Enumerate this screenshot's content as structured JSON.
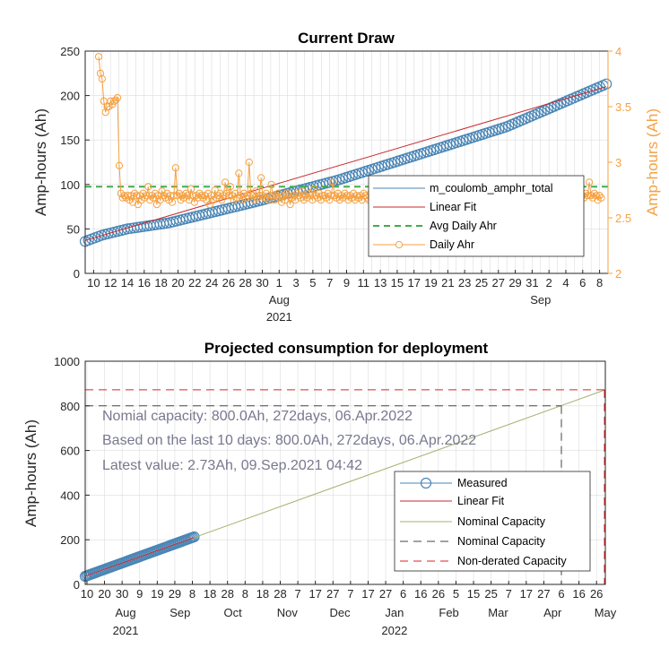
{
  "colors": {
    "measured": "#4a86b6",
    "linear_fit": "#c8282e",
    "avg_daily": "#3fae49",
    "daily": "#f5a142",
    "nominal_line": "#a4b06a",
    "nominal_dash": "#444444",
    "nonderated": "#e02020",
    "grid": "#dcdcdc",
    "annotation": "#787890"
  },
  "chart_data": [
    {
      "type": "line",
      "title": "Current Draw",
      "ylabel": "Amp-hours (Ah)",
      "ylabel_right": "Amp-hours (Ah)",
      "ylim": [
        0,
        250
      ],
      "yticks": [
        0,
        50,
        100,
        150,
        200,
        250
      ],
      "ylim_right": [
        2,
        4
      ],
      "yticks_right": [
        "2",
        "2.5",
        "3",
        "3.5",
        "4"
      ],
      "x_range": [
        "2021-07-09",
        "2021-09-09"
      ],
      "xtick_labels": [
        "10",
        "12",
        "14",
        "16",
        "18",
        "20",
        "22",
        "24",
        "26",
        "28",
        "30",
        "1",
        "3",
        "5",
        "7",
        "9",
        "11",
        "13",
        "15",
        "17",
        "19",
        "21",
        "23",
        "25",
        "27",
        "29",
        "31",
        "2",
        "4",
        "6",
        "8"
      ],
      "xtick_secondary": [
        {
          "label": "Aug",
          "year": "2021"
        },
        {
          "label": "Sep",
          "year": ""
        }
      ],
      "grid": true,
      "legend_position": "bottom-right",
      "legend": [
        "m_coulomb_amphr_total",
        "Linear Fit",
        "Avg Daily Ahr",
        "Daily Ahr"
      ],
      "series": [
        {
          "name": "m_coulomb_amphr_total",
          "style": "circles",
          "x_start": "2021-07-09",
          "x_end": "2021-09-09",
          "points": [
            [
              0,
              36
            ],
            [
              2,
              43
            ],
            [
              5,
              50
            ],
            [
              10,
              57
            ],
            [
              20,
              80
            ],
            [
              30,
              105
            ],
            [
              40,
              135
            ],
            [
              50,
              165
            ],
            [
              61.8,
              213
            ]
          ]
        },
        {
          "name": "Linear Fit",
          "style": "line",
          "x_start": "2021-07-09",
          "x_end": "2021-09-09",
          "values": [
            [
              0,
              37
            ],
            [
              61.8,
              210
            ]
          ]
        },
        {
          "name": "Avg Daily Ahr",
          "style": "dashed",
          "value": 2.78
        },
        {
          "name": "Daily Ahr",
          "style": "line-circles",
          "axis": "right",
          "values": [
            3.95,
            3.8,
            3.75,
            3.55,
            3.45,
            3.5,
            3.5,
            3.55,
            3.52,
            3.55,
            3.56,
            3.58,
            2.97,
            2.72,
            2.68,
            2.7,
            2.68,
            2.7,
            2.66,
            2.7,
            2.64,
            2.72,
            2.7,
            2.62,
            2.7,
            2.66,
            2.72,
            2.68,
            2.7,
            2.78,
            2.66,
            2.7,
            2.68,
            2.72,
            2.62,
            2.7,
            2.66,
            2.74,
            2.7,
            2.68,
            2.72,
            2.66,
            2.7,
            2.64,
            2.7,
            2.95,
            2.7,
            2.72,
            2.66,
            2.7,
            2.68,
            2.72,
            2.7,
            2.66,
            2.76,
            2.7,
            2.64,
            2.7,
            2.68,
            2.72,
            2.7,
            2.68,
            2.7,
            2.66,
            2.72,
            2.62,
            2.7,
            2.66,
            2.75,
            2.68,
            2.7,
            2.72,
            2.66,
            2.7,
            2.82,
            2.72,
            2.7,
            2.78,
            2.7,
            2.66,
            2.72,
            2.68,
            2.9,
            2.7,
            2.66,
            2.72,
            2.68,
            2.7,
            3.0,
            2.72,
            2.7,
            2.66,
            2.74,
            2.68,
            2.7,
            2.86,
            2.7,
            2.68,
            2.72,
            2.66,
            2.7,
            2.8,
            2.7,
            2.66,
            2.7,
            2.72,
            2.68,
            2.64,
            2.7,
            2.66,
            2.72,
            2.7,
            2.62,
            2.68,
            2.7,
            2.66,
            2.72,
            2.7,
            2.68,
            2.74,
            2.66,
            2.7,
            2.68,
            2.72,
            2.7,
            2.66,
            2.76,
            2.7,
            2.68,
            2.72,
            2.66,
            2.7,
            2.7,
            2.68,
            2.72,
            2.66,
            2.7,
            2.82,
            2.7,
            2.68,
            2.72,
            2.66,
            2.7,
            2.68,
            2.72,
            2.7,
            2.66,
            2.7,
            2.68,
            2.72,
            2.66,
            2.7,
            2.68,
            2.7,
            2.66,
            2.72,
            2.7,
            2.68,
            2.66,
            2.72,
            2.7,
            2.68,
            2.7,
            2.66,
            2.72,
            2.7,
            2.68,
            2.66,
            2.7,
            2.72,
            2.68,
            2.7,
            2.66,
            2.7,
            2.72,
            2.68,
            2.7,
            2.66,
            2.72,
            2.7,
            2.68,
            2.7,
            2.66,
            2.7,
            2.72,
            2.7,
            2.68,
            2.7,
            2.66,
            2.72,
            2.7,
            2.68,
            2.66,
            2.7,
            2.72,
            2.68,
            2.7,
            2.66,
            2.7,
            2.72,
            2.68,
            2.7,
            2.66,
            2.7,
            2.72,
            2.7,
            2.68,
            2.66,
            2.7,
            2.72,
            2.68,
            2.7,
            2.66,
            2.7,
            2.72,
            2.68,
            2.7,
            2.66,
            2.7,
            2.72,
            2.68,
            2.7,
            2.66,
            2.7,
            2.68,
            2.72,
            2.7,
            2.66,
            2.7,
            2.68,
            2.72,
            2.7,
            2.66,
            2.7,
            2.68,
            2.72,
            2.7,
            2.66,
            2.7,
            2.68,
            2.72,
            2.76,
            2.66,
            2.7,
            2.68,
            2.72,
            2.7,
            2.66,
            2.7,
            2.68,
            2.72,
            2.7,
            2.66,
            2.7,
            2.68,
            2.72,
            2.7,
            2.66,
            2.7,
            2.68,
            2.72,
            2.7,
            2.66,
            2.7,
            2.68,
            2.72,
            2.7,
            2.66,
            2.7,
            2.8,
            2.72,
            2.7,
            2.66,
            2.7,
            2.68,
            2.72,
            2.7,
            2.66,
            2.7,
            2.68,
            2.72,
            2.7,
            2.66,
            2.7,
            2.68,
            2.72,
            2.7,
            2.82,
            2.7,
            2.68,
            2.72,
            2.7,
            2.66,
            2.7,
            2.68
          ]
        }
      ]
    },
    {
      "type": "line",
      "title": "Projected consumption for deployment",
      "ylabel": "Amp-hours (Ah)",
      "ylim": [
        0,
        1000
      ],
      "yticks": [
        0,
        200,
        400,
        600,
        800,
        1000
      ],
      "x_range": [
        "2021-07-09",
        "2022-05-01"
      ],
      "xtick_labels": [
        "10",
        "20",
        "30",
        "9",
        "19",
        "29",
        "8",
        "18",
        "28",
        "8",
        "18",
        "28",
        "7",
        "17",
        "27",
        "7",
        "17",
        "27",
        "6",
        "16",
        "26",
        "5",
        "15",
        "25",
        "7",
        "17",
        "27",
        "6",
        "16",
        "26"
      ],
      "xtick_secondary": [
        {
          "label": "Aug",
          "year": "2021"
        },
        {
          "label": "Sep",
          "year": ""
        },
        {
          "label": "Oct",
          "year": ""
        },
        {
          "label": "Nov",
          "year": ""
        },
        {
          "label": "Dec",
          "year": ""
        },
        {
          "label": "Jan",
          "year": "2022"
        },
        {
          "label": "Feb",
          "year": ""
        },
        {
          "label": "Mar",
          "year": ""
        },
        {
          "label": "Apr",
          "year": ""
        },
        {
          "label": "May",
          "year": ""
        }
      ],
      "grid": true,
      "legend_position": "bottom-right",
      "legend": [
        "Measured",
        "Linear Fit",
        "Nominal Capacity",
        "Nominal Capacity",
        "Non-derated Capacity"
      ],
      "annotations": [
        "Nomial capacity: 800.0Ah,   272days,  06.Apr.2022",
        "Based on the last 10 days: 800.0Ah,   272days,  06.Apr.2022",
        "Latest value:  2.73Ah, 09.Sep.2021 04:42"
      ],
      "series": [
        {
          "name": "Measured",
          "style": "circles",
          "x_start": "2021-07-09",
          "x_end": "2021-09-09",
          "values": [
            36,
            213
          ]
        },
        {
          "name": "Linear Fit",
          "style": "line",
          "values": [
            37,
            210
          ]
        },
        {
          "name": "Nominal Capacity",
          "style": "line",
          "x_start": "2021-09-09",
          "x_end": "2022-05-01",
          "values": [
            210,
            872
          ]
        },
        {
          "name": "Nominal Capacity",
          "style": "dashed",
          "value": 800,
          "date": "2022-04-06"
        },
        {
          "name": "Non-derated Capacity",
          "style": "dashed",
          "value": 872,
          "date": "2022-05-01"
        }
      ]
    }
  ]
}
